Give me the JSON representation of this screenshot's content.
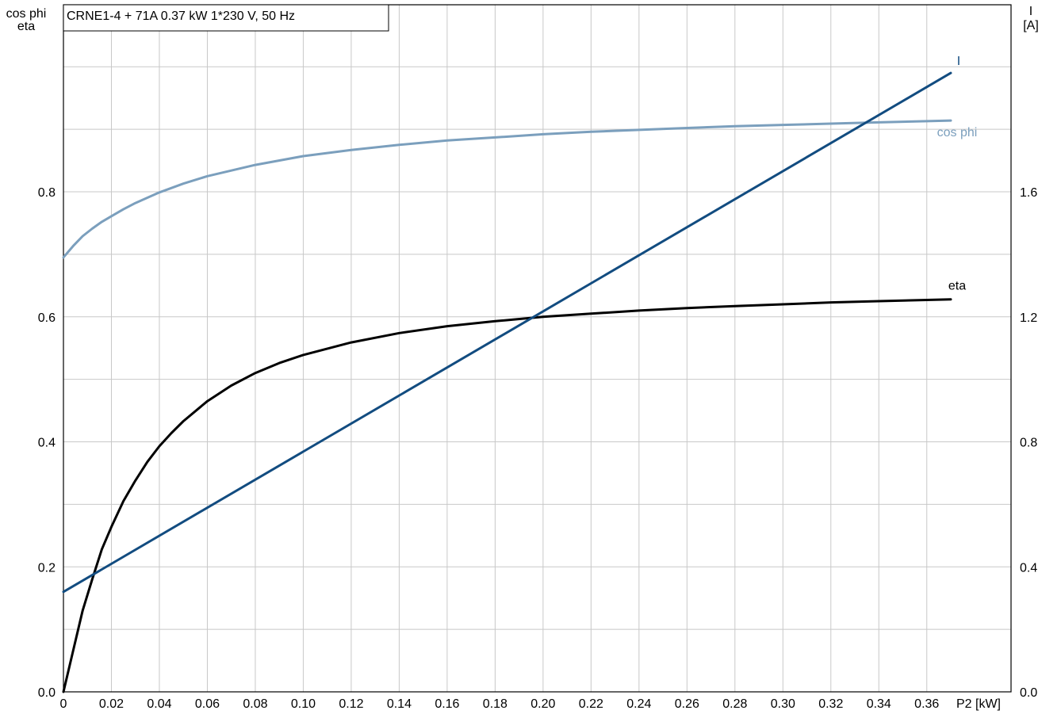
{
  "chart_data": {
    "type": "line",
    "title": "CRNE1-4 + 71A   0.37 kW   1*230 V, 50 Hz",
    "xlabel": "P2 [kW]",
    "ylabel_left": [
      "cos phi",
      "eta"
    ],
    "ylabel_right": [
      "I",
      "[A]"
    ],
    "xlim": [
      0,
      0.4
    ],
    "ylim_left": [
      0,
      1.0
    ],
    "ylim_right": [
      0,
      2.0
    ],
    "x_ticks": [
      "0",
      "0.02",
      "0.04",
      "0.06",
      "0.08",
      "0.10",
      "0.12",
      "0.14",
      "0.16",
      "0.18",
      "0.20",
      "0.22",
      "0.24",
      "0.26",
      "0.28",
      "0.30",
      "0.32",
      "0.34",
      "0.36"
    ],
    "y_ticks_left": [
      "0.0",
      "0.2",
      "0.4",
      "0.6",
      "0.8"
    ],
    "y_ticks_right": [
      "0.0",
      "0.4",
      "0.8",
      "1.2",
      "1.6"
    ],
    "grid": true,
    "series": [
      {
        "name": "cos phi",
        "axis": "left",
        "color": "#7b9fbd",
        "x": [
          0,
          0.004,
          0.008,
          0.012,
          0.016,
          0.02,
          0.025,
          0.03,
          0.04,
          0.05,
          0.06,
          0.08,
          0.1,
          0.12,
          0.14,
          0.16,
          0.18,
          0.2,
          0.22,
          0.24,
          0.26,
          0.28,
          0.3,
          0.32,
          0.34,
          0.36,
          0.37
        ],
        "values": [
          0.695,
          0.713,
          0.729,
          0.741,
          0.752,
          0.761,
          0.772,
          0.782,
          0.799,
          0.813,
          0.825,
          0.843,
          0.857,
          0.867,
          0.875,
          0.882,
          0.887,
          0.892,
          0.896,
          0.899,
          0.902,
          0.905,
          0.907,
          0.909,
          0.911,
          0.913,
          0.914
        ]
      },
      {
        "name": "eta",
        "axis": "left",
        "color": "#000000",
        "x": [
          0,
          0.004,
          0.008,
          0.012,
          0.016,
          0.02,
          0.025,
          0.03,
          0.035,
          0.04,
          0.045,
          0.05,
          0.06,
          0.07,
          0.08,
          0.09,
          0.1,
          0.12,
          0.14,
          0.16,
          0.18,
          0.2,
          0.22,
          0.24,
          0.26,
          0.28,
          0.3,
          0.32,
          0.34,
          0.36,
          0.37
        ],
        "values": [
          0.0,
          0.065,
          0.13,
          0.18,
          0.228,
          0.264,
          0.305,
          0.338,
          0.368,
          0.393,
          0.414,
          0.433,
          0.465,
          0.49,
          0.51,
          0.526,
          0.539,
          0.559,
          0.574,
          0.585,
          0.593,
          0.6,
          0.605,
          0.61,
          0.614,
          0.617,
          0.62,
          0.623,
          0.625,
          0.627,
          0.628
        ]
      },
      {
        "name": "I",
        "axis": "right",
        "color": "#124c80",
        "x": [
          0,
          0.37
        ],
        "values": [
          0.32,
          1.98
        ]
      }
    ]
  }
}
